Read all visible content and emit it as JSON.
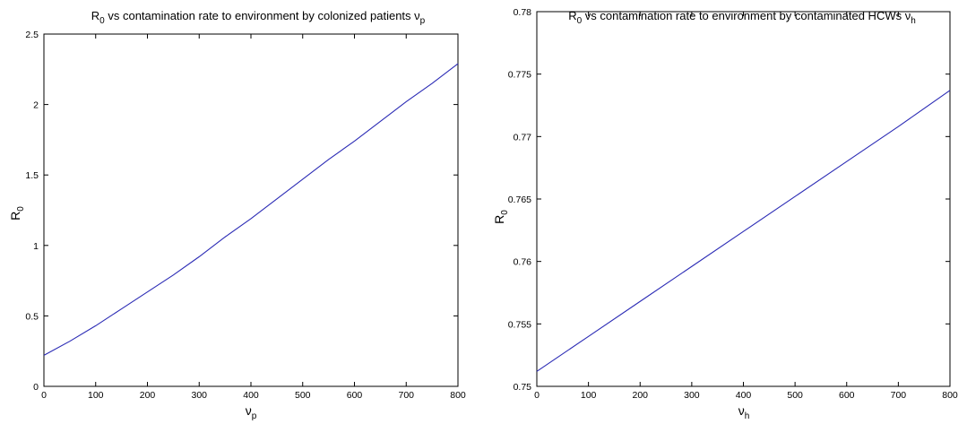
{
  "colors": {
    "series": "#2b2bb5",
    "axis": "#000000",
    "background": "#ffffff"
  },
  "chart_data": [
    {
      "type": "line",
      "title": {
        "main": "R",
        "sub": "0",
        "rest": " vs contamination rate to environment by colonized patients ν",
        "sub2": "p"
      },
      "xlabel": {
        "main": "ν",
        "sub": "p"
      },
      "ylabel": {
        "main": "R",
        "sub": "0"
      },
      "xlim": [
        0,
        800
      ],
      "ylim": [
        0,
        2.5
      ],
      "xticks": [
        0,
        100,
        200,
        300,
        400,
        500,
        600,
        700,
        800
      ],
      "yticks": [
        0,
        0.5,
        1,
        1.5,
        2,
        2.5
      ],
      "grid": false,
      "series": [
        {
          "x": [
            0,
            50,
            100,
            150,
            200,
            250,
            300,
            350,
            400,
            450,
            500,
            550,
            600,
            650,
            700,
            750,
            800
          ],
          "y": [
            0.22,
            0.32,
            0.43,
            0.55,
            0.67,
            0.79,
            0.92,
            1.06,
            1.19,
            1.33,
            1.47,
            1.61,
            1.74,
            1.88,
            2.02,
            2.15,
            2.29
          ]
        }
      ]
    },
    {
      "type": "line",
      "title": {
        "main": "R",
        "sub": "0",
        "rest": " vs contamination rate to environment by contaminated HCWs ν",
        "sub2": "h"
      },
      "xlabel": {
        "main": "ν",
        "sub": "h"
      },
      "ylabel": {
        "main": "R",
        "sub": "0"
      },
      "xlim": [
        0,
        800
      ],
      "ylim": [
        0.75,
        0.78
      ],
      "xticks": [
        0,
        100,
        200,
        300,
        400,
        500,
        600,
        700,
        800
      ],
      "yticks": [
        0.75,
        0.755,
        0.76,
        0.765,
        0.77,
        0.775,
        0.78
      ],
      "grid": false,
      "series": [
        {
          "x": [
            0,
            100,
            200,
            300,
            400,
            500,
            600,
            700,
            800
          ],
          "y": [
            0.7512,
            0.754,
            0.7568,
            0.7596,
            0.7624,
            0.7652,
            0.768,
            0.7708,
            0.7737
          ]
        }
      ]
    }
  ]
}
